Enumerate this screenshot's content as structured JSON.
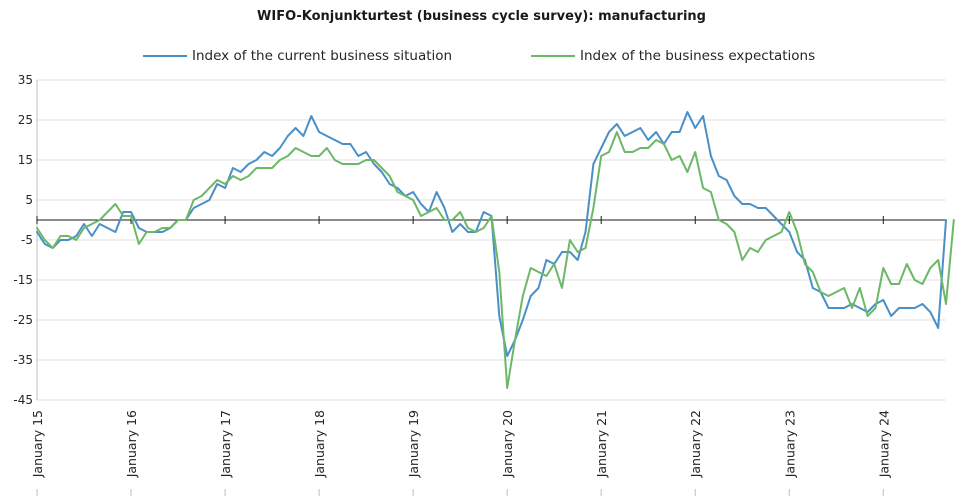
{
  "chart_data": {
    "type": "line",
    "title": "WIFO-Konjunkturtest (business cycle survey): manufacturing",
    "xlabel": "",
    "ylabel": "",
    "ylim": [
      -45,
      35
    ],
    "yticks": [
      35,
      25,
      15,
      5,
      -5,
      -15,
      -25,
      -35,
      -45
    ],
    "xticks": [
      "January 15",
      "January 16",
      "January 17",
      "January 18",
      "January 19",
      "January 20",
      "January 21",
      "January 22",
      "January 23",
      "January 24",
      "January 25"
    ],
    "x_start": "2015-01",
    "frequency": "monthly",
    "grid": "horizontal",
    "legend_position": "top",
    "series": [
      {
        "name": "Index of the current business situation",
        "color": "#4A90C8",
        "values": [
          -3,
          -6,
          -7,
          -5,
          -5,
          -4,
          -1,
          -4,
          -1,
          -2,
          -3,
          2,
          2,
          -2,
          -3,
          -3,
          -3,
          -2,
          0,
          0,
          3,
          4,
          5,
          9,
          8,
          13,
          12,
          14,
          15,
          17,
          16,
          18,
          21,
          23,
          21,
          26,
          22,
          21,
          20,
          19,
          19,
          16,
          17,
          14,
          12,
          9,
          8,
          6,
          7,
          4,
          2,
          7,
          3,
          -3,
          -1,
          -3,
          -3,
          2,
          1,
          -24,
          -34,
          -30,
          -25,
          -19,
          -17,
          -10,
          -11,
          -8,
          -8,
          -10,
          -3,
          14,
          18,
          22,
          24,
          21,
          22,
          23,
          20,
          22,
          19,
          22,
          22,
          27,
          23,
          26,
          16,
          11,
          10,
          6,
          4,
          4,
          3,
          3,
          1,
          -1,
          -3,
          -8,
          -10,
          -17,
          -18,
          -22,
          -22,
          -22,
          -21,
          -22,
          -23,
          -21,
          -20,
          -24,
          -22,
          -22,
          -22,
          -21,
          -23,
          -27,
          0
        ]
      },
      {
        "name": "Index of the business expectations",
        "color": "#6DB867",
        "values": [
          -2,
          -5,
          -7,
          -4,
          -4,
          -5,
          -2,
          -1,
          0,
          2,
          4,
          1,
          1,
          -6,
          -3,
          -3,
          -2,
          -2,
          0,
          0,
          5,
          6,
          8,
          10,
          9,
          11,
          10,
          11,
          13,
          13,
          13,
          15,
          16,
          18,
          17,
          16,
          16,
          18,
          15,
          14,
          14,
          14,
          15,
          15,
          13,
          11,
          7,
          6,
          5,
          1,
          2,
          3,
          0,
          0,
          2,
          -2,
          -3,
          -2,
          1,
          -13,
          -42,
          -30,
          -19,
          -12,
          -13,
          -14,
          -11,
          -17,
          -5,
          -8,
          -7,
          3,
          16,
          17,
          22,
          17,
          17,
          18,
          18,
          20,
          19,
          15,
          16,
          12,
          17,
          8,
          7,
          0,
          -1,
          -3,
          -10,
          -7,
          -8,
          -5,
          -4,
          -3,
          2,
          -3,
          -11,
          -13,
          -18,
          -19,
          -18,
          -17,
          -22,
          -17,
          -24,
          -22,
          -12,
          -16,
          -16,
          -11,
          -15,
          -16,
          -12,
          -10,
          -21,
          0
        ]
      }
    ]
  }
}
